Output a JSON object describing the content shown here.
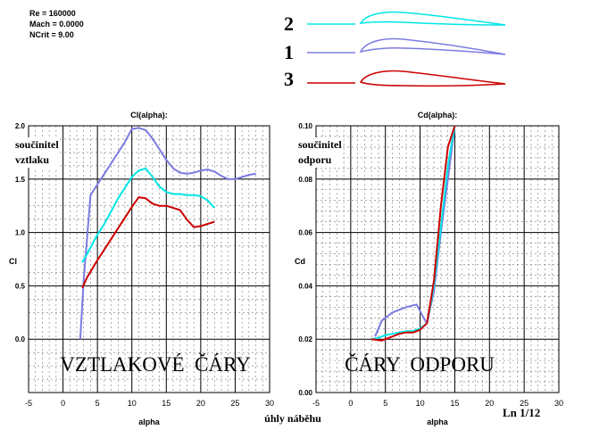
{
  "params": [
    "Re = 160000",
    "Mach = 0.0000",
    "NCrit = 9.00"
  ],
  "legend": [
    {
      "label": "2",
      "color": "#00e5e5"
    },
    {
      "label": "1",
      "color": "#7b7be0"
    },
    {
      "label": "3",
      "color": "#cc0000"
    }
  ],
  "bottom_label": "úhly  náběhu",
  "page_number": "Ln 1/12",
  "chart_data": [
    {
      "type": "line",
      "title": "Cl(alpha):",
      "xlabel": "alpha",
      "ylabel": "Cl",
      "xlim": [
        -5,
        30
      ],
      "ylim": [
        -0.5,
        2.0
      ],
      "xticks": [
        -5,
        0,
        5,
        10,
        15,
        20,
        25,
        30
      ],
      "yticks": [
        0.0,
        0.5,
        1.0,
        1.5,
        2.0
      ],
      "ytick_labels": [
        "0.0",
        "0.5",
        "1.0",
        "1.5",
        "2.0"
      ],
      "grid": true,
      "annotation_top": "součinitel vztlaku",
      "annotation_big": "VZTLAKOVÉ  ČÁRY",
      "series": [
        {
          "name": "1",
          "color": "#7b7be0",
          "x": [
            2.5,
            3,
            4,
            5,
            6,
            7,
            8,
            9,
            10,
            11,
            12,
            13,
            14,
            15,
            16,
            17,
            18,
            19,
            20,
            21,
            22,
            23,
            24,
            25,
            26,
            27,
            28
          ],
          "y": [
            0.0,
            0.55,
            1.35,
            1.45,
            1.55,
            1.65,
            1.75,
            1.85,
            1.97,
            1.98,
            1.96,
            1.88,
            1.78,
            1.68,
            1.6,
            1.56,
            1.55,
            1.56,
            1.58,
            1.59,
            1.57,
            1.53,
            1.5,
            1.5,
            1.52,
            1.54,
            1.55
          ]
        },
        {
          "name": "2",
          "color": "#00e5e5",
          "x": [
            2.8,
            3.5,
            5,
            6,
            7,
            8,
            9,
            10,
            11,
            12,
            13,
            14,
            15,
            16,
            17,
            18,
            19,
            20,
            21,
            22
          ],
          "y": [
            0.72,
            0.8,
            0.98,
            1.08,
            1.2,
            1.32,
            1.42,
            1.52,
            1.58,
            1.6,
            1.52,
            1.43,
            1.38,
            1.36,
            1.36,
            1.35,
            1.35,
            1.34,
            1.3,
            1.23
          ]
        },
        {
          "name": "3",
          "color": "#cc0000",
          "x": [
            2.8,
            3.5,
            5,
            6,
            7,
            8,
            9,
            10,
            11,
            12,
            13,
            14,
            15,
            16,
            17,
            18,
            19,
            20,
            21,
            22
          ],
          "y": [
            0.48,
            0.58,
            0.74,
            0.84,
            0.94,
            1.04,
            1.14,
            1.24,
            1.33,
            1.32,
            1.27,
            1.25,
            1.25,
            1.23,
            1.21,
            1.12,
            1.05,
            1.06,
            1.08,
            1.1
          ]
        }
      ]
    },
    {
      "type": "line",
      "title": "Cd(alpha):",
      "xlabel": "alpha",
      "ylabel": "Cd",
      "xlim": [
        -5,
        30
      ],
      "ylim": [
        0.0,
        0.1
      ],
      "xticks": [
        -5,
        0,
        5,
        10,
        15,
        20,
        25,
        30
      ],
      "yticks": [
        0.0,
        0.02,
        0.04,
        0.06,
        0.08,
        0.1
      ],
      "ytick_labels": [
        "0.00",
        "0.02",
        "0.04",
        "0.06",
        "0.08",
        "0.10"
      ],
      "grid": true,
      "annotation_top": "součinitel odporu",
      "annotation_big": "ČÁRY  ODPORU",
      "series": [
        {
          "name": "1",
          "color": "#7b7be0",
          "x": [
            3.5,
            4.5,
            6,
            8,
            9.5,
            10.5,
            11,
            12,
            13,
            14,
            15
          ],
          "y": [
            0.021,
            0.027,
            0.03,
            0.032,
            0.033,
            0.028,
            0.026,
            0.038,
            0.06,
            0.08,
            0.1
          ]
        },
        {
          "name": "2",
          "color": "#00e5e5",
          "x": [
            3,
            4,
            5,
            6,
            7,
            8,
            9,
            10,
            11,
            12,
            13,
            14,
            15
          ],
          "y": [
            0.02,
            0.0205,
            0.0215,
            0.022,
            0.0225,
            0.023,
            0.023,
            0.024,
            0.026,
            0.04,
            0.062,
            0.085,
            0.1
          ]
        },
        {
          "name": "3",
          "color": "#cc0000",
          "x": [
            3,
            4.5,
            6,
            7,
            8,
            9,
            10,
            11,
            12,
            13,
            14,
            15
          ],
          "y": [
            0.02,
            0.0195,
            0.021,
            0.022,
            0.0225,
            0.0225,
            0.0235,
            0.026,
            0.042,
            0.07,
            0.092,
            0.1
          ]
        }
      ]
    }
  ]
}
